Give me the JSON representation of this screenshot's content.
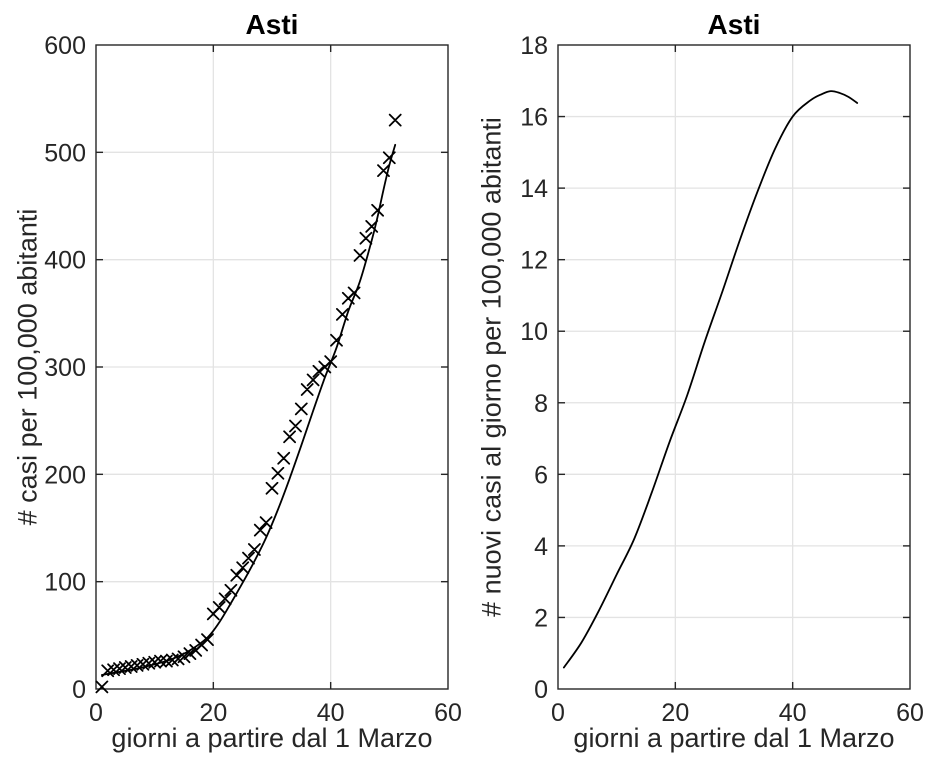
{
  "figure": {
    "background": "#ffffff",
    "axis_color": "#262626",
    "grid_color": "#e3e3e3",
    "data_color": "#000000"
  },
  "chart_data": [
    {
      "type": "scatter",
      "title": "Asti",
      "xlabel": "giorni a partire dal 1 Marzo",
      "ylabel": "# casi per 100,000 abitanti",
      "xlim": [
        0,
        60
      ],
      "ylim": [
        0,
        600
      ],
      "xticks": [
        0,
        20,
        40,
        60
      ],
      "yticks": [
        0,
        100,
        200,
        300,
        400,
        500,
        600
      ],
      "grid": true,
      "marker": "x",
      "scatter": {
        "x": [
          1,
          2,
          3,
          4,
          5,
          6,
          7,
          8,
          9,
          10,
          11,
          12,
          13,
          14,
          15,
          16,
          17,
          18,
          19,
          20,
          21,
          22,
          23,
          24,
          25,
          26,
          27,
          28,
          29,
          30,
          31,
          32,
          33,
          34,
          35,
          36,
          37,
          38,
          39,
          40,
          41,
          42,
          43,
          44,
          45,
          46,
          47,
          48,
          49,
          50,
          51
        ],
        "y": [
          2,
          17,
          18,
          19,
          20,
          21,
          22,
          23,
          24,
          25,
          26,
          26,
          27,
          28,
          30,
          33,
          36,
          41,
          46,
          70,
          76,
          84,
          92,
          106,
          113,
          122,
          130,
          148,
          155,
          187,
          201,
          215,
          235,
          245,
          261,
          279,
          288,
          296,
          300,
          305,
          325,
          349,
          364,
          369,
          404,
          420,
          431,
          446,
          483,
          495,
          530
        ]
      },
      "fit_curve": {
        "x": [
          1,
          4,
          7,
          10,
          13,
          16,
          19,
          21,
          23,
          25,
          27,
          29,
          31,
          33,
          35,
          37,
          39,
          41,
          43,
          45,
          47,
          48,
          49,
          50,
          51
        ],
        "y": [
          13,
          16,
          19,
          23,
          28,
          36,
          48,
          62,
          80,
          99,
          119,
          141,
          167,
          196,
          227,
          259,
          290,
          318,
          352,
          380,
          418,
          440,
          465,
          488,
          507
        ]
      }
    },
    {
      "type": "line",
      "title": "Asti",
      "xlabel": "giorni a partire dal 1 Marzo",
      "ylabel": "# nuovi casi al giorno per 100,000 abitanti",
      "xlim": [
        0,
        60
      ],
      "ylim": [
        0,
        18
      ],
      "xticks": [
        0,
        20,
        40,
        60
      ],
      "yticks": [
        0,
        2,
        4,
        6,
        8,
        10,
        12,
        14,
        16,
        18
      ],
      "grid": true,
      "curve": {
        "x": [
          1,
          4,
          7,
          10,
          13,
          16,
          19,
          22,
          25,
          28,
          31,
          34,
          37,
          40,
          43,
          45,
          46.5,
          48,
          49.5,
          51
        ],
        "y": [
          0.6,
          1.3,
          2.2,
          3.2,
          4.2,
          5.5,
          6.9,
          8.2,
          9.7,
          11.1,
          12.55,
          13.9,
          15.1,
          16.0,
          16.45,
          16.63,
          16.71,
          16.66,
          16.55,
          16.38
        ]
      }
    }
  ]
}
